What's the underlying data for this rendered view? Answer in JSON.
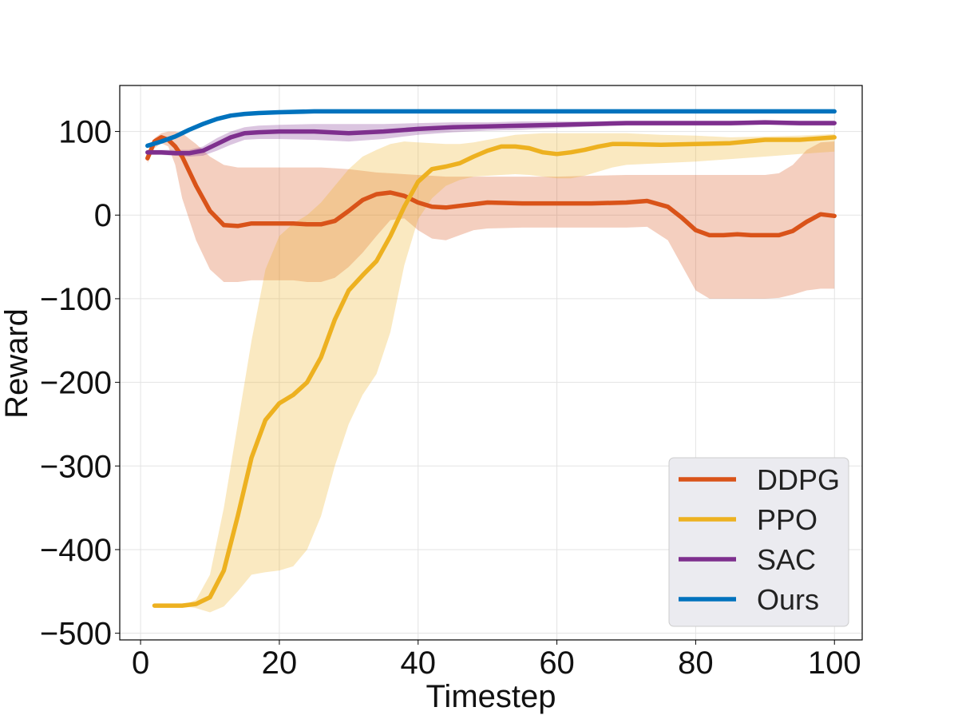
{
  "chart_data": {
    "type": "line",
    "title": "",
    "xlabel": "Timestep",
    "ylabel": "Reward",
    "xlim": [
      -3,
      104
    ],
    "ylim": [
      -508,
      155
    ],
    "xticks": [
      0,
      20,
      40,
      60,
      80,
      100
    ],
    "xtick_labels": [
      "0",
      "20",
      "40",
      "60",
      "80",
      "100"
    ],
    "yticks": [
      100,
      0,
      -100,
      -200,
      -300,
      -400,
      -500
    ],
    "ytick_labels": [
      "100",
      "0",
      "−100",
      "−200",
      "−300",
      "−400",
      "−500"
    ],
    "grid": true,
    "legend_position": "lower-right",
    "series": [
      {
        "name": "DDPG",
        "color": "#D95319",
        "x": [
          1,
          2,
          3,
          4,
          5,
          6,
          8,
          10,
          12,
          14,
          16,
          18,
          20,
          22,
          24,
          26,
          28,
          30,
          32,
          34,
          36,
          38,
          40,
          42,
          44,
          46,
          48,
          50,
          55,
          60,
          65,
          70,
          73,
          76,
          78,
          80,
          82,
          84,
          86,
          88,
          90,
          92,
          94,
          96,
          98,
          100
        ],
        "y": [
          68,
          88,
          93,
          90,
          82,
          70,
          35,
          5,
          -12,
          -13,
          -10,
          -10,
          -10,
          -10,
          -11,
          -11,
          -7,
          5,
          18,
          25,
          27,
          23,
          15,
          10,
          9,
          11,
          13,
          15,
          14,
          14,
          14,
          15,
          17,
          10,
          -3,
          -18,
          -24,
          -24,
          -23,
          -24,
          -24,
          -24,
          -19,
          -8,
          1,
          -1
        ],
        "upper": [
          74,
          92,
          98,
          100,
          100,
          98,
          85,
          70,
          60,
          57,
          57,
          57,
          57,
          57,
          57,
          57,
          56,
          55,
          53,
          51,
          50,
          49,
          48,
          47,
          46,
          46,
          46,
          46,
          46,
          46,
          47,
          48,
          48,
          48,
          48,
          48,
          48,
          48,
          48,
          48,
          48,
          50,
          60,
          78,
          87,
          88
        ],
        "lower": [
          62,
          80,
          86,
          82,
          60,
          20,
          -30,
          -65,
          -80,
          -80,
          -78,
          -78,
          -78,
          -78,
          -80,
          -80,
          -75,
          -62,
          -45,
          -25,
          -6,
          -4,
          -18,
          -28,
          -30,
          -24,
          -18,
          -16,
          -15,
          -15,
          -15,
          -15,
          -14,
          -30,
          -60,
          -90,
          -100,
          -100,
          -100,
          -100,
          -100,
          -99,
          -95,
          -90,
          -88,
          -88
        ]
      },
      {
        "name": "PPO",
        "color": "#EDB120",
        "x": [
          2,
          4,
          6,
          8,
          10,
          12,
          14,
          16,
          18,
          20,
          22,
          24,
          26,
          28,
          30,
          32,
          34,
          36,
          38,
          40,
          42,
          44,
          46,
          48,
          50,
          52,
          54,
          56,
          58,
          60,
          62,
          64,
          66,
          68,
          70,
          75,
          80,
          85,
          90,
          95,
          100
        ],
        "y": [
          -467,
          -467,
          -467,
          -465,
          -457,
          -425,
          -360,
          -290,
          -245,
          -225,
          -215,
          -200,
          -170,
          -125,
          -90,
          -72,
          -55,
          -25,
          10,
          40,
          55,
          58,
          62,
          70,
          77,
          82,
          82,
          80,
          75,
          73,
          75,
          78,
          82,
          85,
          85,
          84,
          85,
          86,
          90,
          90,
          93
        ],
        "upper": [
          -467,
          -467,
          -467,
          -460,
          -430,
          -350,
          -250,
          -150,
          -65,
          -25,
          -10,
          0,
          15,
          35,
          55,
          70,
          78,
          85,
          88,
          87,
          86,
          85,
          85,
          87,
          90,
          93,
          96,
          97,
          98,
          98,
          98,
          98,
          98,
          98,
          98,
          96,
          95,
          93,
          94,
          95,
          97
        ],
        "lower": [
          -467,
          -467,
          -467,
          -470,
          -475,
          -468,
          -450,
          -430,
          -427,
          -425,
          -420,
          -400,
          -360,
          -300,
          -250,
          -215,
          -190,
          -140,
          -60,
          -5,
          20,
          35,
          42,
          46,
          47,
          48,
          49,
          48,
          46,
          44,
          44,
          47,
          52,
          57,
          60,
          62,
          64,
          67,
          70,
          73,
          76
        ]
      },
      {
        "name": "SAC",
        "color": "#7E2F8E",
        "x": [
          1,
          3,
          5,
          7,
          9,
          11,
          13,
          15,
          17,
          20,
          25,
          30,
          35,
          40,
          45,
          50,
          55,
          60,
          65,
          70,
          75,
          80,
          85,
          90,
          95,
          100
        ],
        "y": [
          75,
          75,
          74,
          74,
          77,
          85,
          93,
          98,
          99,
          100,
          100,
          98,
          100,
          103,
          105,
          106,
          107,
          108,
          109,
          110,
          110,
          110,
          110,
          111,
          110,
          110
        ],
        "upper": [
          78,
          78,
          78,
          78,
          82,
          92,
          100,
          105,
          107,
          108,
          109,
          109,
          109,
          110,
          111,
          111,
          112,
          112,
          112,
          113,
          113,
          113,
          113,
          113,
          113,
          113
        ],
        "lower": [
          72,
          72,
          71,
          70,
          71,
          77,
          84,
          90,
          91,
          91,
          90,
          88,
          91,
          96,
          99,
          101,
          102,
          104,
          106,
          107,
          107,
          107,
          107,
          108,
          107,
          107
        ]
      },
      {
        "name": "Ours",
        "color": "#0072BD",
        "x": [
          1,
          3,
          5,
          7,
          9,
          11,
          13,
          15,
          17,
          20,
          25,
          30,
          40,
          50,
          60,
          70,
          80,
          90,
          100
        ],
        "y": [
          83,
          88,
          94,
          102,
          109,
          115,
          119,
          121,
          122,
          123,
          124,
          124,
          124,
          124,
          124,
          124,
          124,
          124,
          124
        ],
        "upper": [
          85,
          90,
          96,
          104,
          111,
          117,
          120,
          122,
          123,
          124,
          125,
          125,
          125,
          125,
          125,
          125,
          125,
          125,
          125
        ],
        "lower": [
          81,
          86,
          92,
          100,
          107,
          113,
          118,
          120,
          121,
          122,
          123,
          123,
          123,
          123,
          123,
          123,
          123,
          123,
          123
        ]
      }
    ]
  }
}
